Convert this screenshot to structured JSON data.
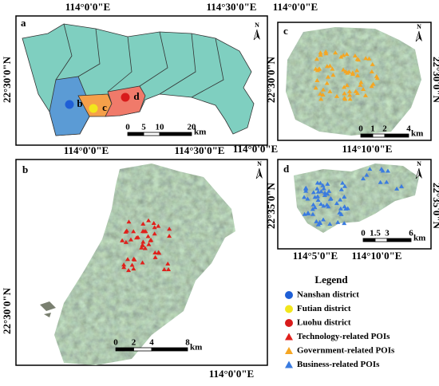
{
  "panels": [
    {
      "letter": "a",
      "top_labels": [
        "114°0'0\"E",
        "114°30'0\"E"
      ],
      "bottom_labels": [
        "114°0'0\"E",
        "114°30'0\"E"
      ],
      "left_labels": [
        "22°30'0\"N"
      ],
      "district_labels": [
        "b",
        "c",
        "d"
      ],
      "north": "N",
      "scale_ticks": [
        "0",
        "5",
        "10",
        "20"
      ],
      "scale_unit": "km"
    },
    {
      "letter": "c",
      "top_labels": [
        "114°0'0\"E"
      ],
      "bottom_labels": [
        "114°0'0\"E",
        "114°10'0\"E"
      ],
      "left_labels": [
        "22°30'0\"N"
      ],
      "right_labels": [
        "22°30'0\"N"
      ],
      "north": "N",
      "scale_ticks": [
        "0",
        "1",
        "2",
        "4"
      ],
      "scale_unit": "km"
    },
    {
      "letter": "b",
      "bottom_labels": [
        "114°0'0\"E"
      ],
      "left_labels": [
        "22°30'0\"N"
      ],
      "north": "N",
      "scale_ticks": [
        "0",
        "2",
        "4",
        "8"
      ],
      "scale_unit": "km"
    },
    {
      "letter": "d",
      "bottom_labels": [
        "114°5'0\"E",
        "114°10'0\"E"
      ],
      "left_labels": [
        "22°35'0\"N"
      ],
      "right_labels": [
        "22°35'0\"N"
      ],
      "north": "N",
      "scale_ticks": [
        "0",
        "1.5",
        "3",
        "6"
      ],
      "scale_unit": "km"
    }
  ],
  "legend": {
    "title": "Legend",
    "items": [
      {
        "label": "Nanshan district",
        "shape": "circle",
        "color": "#1f5fd6"
      },
      {
        "label": "Futian district",
        "shape": "circle",
        "color": "#f2e61c"
      },
      {
        "label": "Luohu district",
        "shape": "circle",
        "color": "#d81b1b"
      },
      {
        "label": "Technology-related POIs",
        "shape": "triangle",
        "color": "#e0201b"
      },
      {
        "label": "Government-related POIs",
        "shape": "triangle",
        "color": "#f5a623"
      },
      {
        "label": "Business-related POIs",
        "shape": "triangle",
        "color": "#3a7be0"
      }
    ]
  }
}
